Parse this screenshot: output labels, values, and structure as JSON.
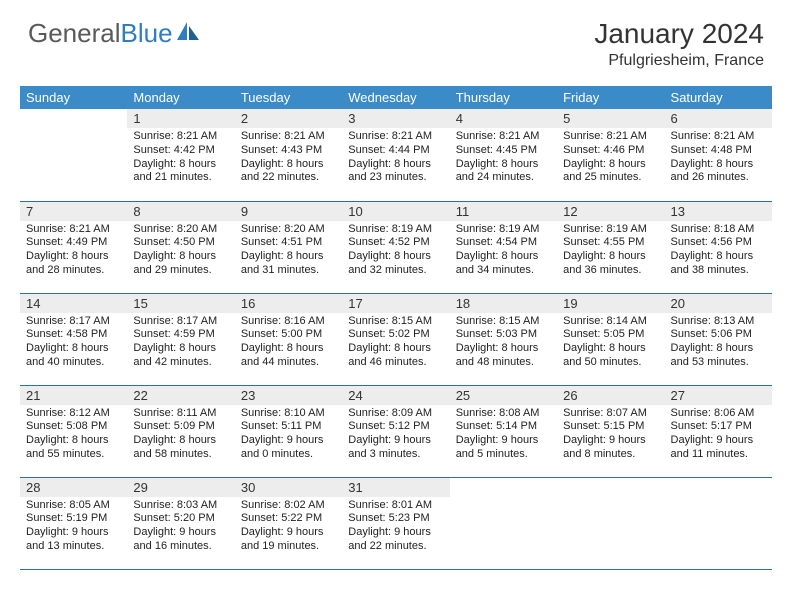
{
  "brand": {
    "part1": "General",
    "part2": "Blue"
  },
  "title": "January 2024",
  "location": "Pfulgriesheim, France",
  "colors": {
    "header_bg": "#3b8bc9",
    "header_text": "#ffffff",
    "daynum_bg": "#ededed",
    "border": "#2f6fa3",
    "text": "#222222",
    "brand_gray": "#5a5a5a",
    "brand_blue": "#2f7ec2"
  },
  "weekdays": [
    "Sunday",
    "Monday",
    "Tuesday",
    "Wednesday",
    "Thursday",
    "Friday",
    "Saturday"
  ],
  "first_weekday_index": 1,
  "days": [
    {
      "n": 1,
      "sr": "8:21 AM",
      "ss": "4:42 PM",
      "dl": "8 hours and 21 minutes."
    },
    {
      "n": 2,
      "sr": "8:21 AM",
      "ss": "4:43 PM",
      "dl": "8 hours and 22 minutes."
    },
    {
      "n": 3,
      "sr": "8:21 AM",
      "ss": "4:44 PM",
      "dl": "8 hours and 23 minutes."
    },
    {
      "n": 4,
      "sr": "8:21 AM",
      "ss": "4:45 PM",
      "dl": "8 hours and 24 minutes."
    },
    {
      "n": 5,
      "sr": "8:21 AM",
      "ss": "4:46 PM",
      "dl": "8 hours and 25 minutes."
    },
    {
      "n": 6,
      "sr": "8:21 AM",
      "ss": "4:48 PM",
      "dl": "8 hours and 26 minutes."
    },
    {
      "n": 7,
      "sr": "8:21 AM",
      "ss": "4:49 PM",
      "dl": "8 hours and 28 minutes."
    },
    {
      "n": 8,
      "sr": "8:20 AM",
      "ss": "4:50 PM",
      "dl": "8 hours and 29 minutes."
    },
    {
      "n": 9,
      "sr": "8:20 AM",
      "ss": "4:51 PM",
      "dl": "8 hours and 31 minutes."
    },
    {
      "n": 10,
      "sr": "8:19 AM",
      "ss": "4:52 PM",
      "dl": "8 hours and 32 minutes."
    },
    {
      "n": 11,
      "sr": "8:19 AM",
      "ss": "4:54 PM",
      "dl": "8 hours and 34 minutes."
    },
    {
      "n": 12,
      "sr": "8:19 AM",
      "ss": "4:55 PM",
      "dl": "8 hours and 36 minutes."
    },
    {
      "n": 13,
      "sr": "8:18 AM",
      "ss": "4:56 PM",
      "dl": "8 hours and 38 minutes."
    },
    {
      "n": 14,
      "sr": "8:17 AM",
      "ss": "4:58 PM",
      "dl": "8 hours and 40 minutes."
    },
    {
      "n": 15,
      "sr": "8:17 AM",
      "ss": "4:59 PM",
      "dl": "8 hours and 42 minutes."
    },
    {
      "n": 16,
      "sr": "8:16 AM",
      "ss": "5:00 PM",
      "dl": "8 hours and 44 minutes."
    },
    {
      "n": 17,
      "sr": "8:15 AM",
      "ss": "5:02 PM",
      "dl": "8 hours and 46 minutes."
    },
    {
      "n": 18,
      "sr": "8:15 AM",
      "ss": "5:03 PM",
      "dl": "8 hours and 48 minutes."
    },
    {
      "n": 19,
      "sr": "8:14 AM",
      "ss": "5:05 PM",
      "dl": "8 hours and 50 minutes."
    },
    {
      "n": 20,
      "sr": "8:13 AM",
      "ss": "5:06 PM",
      "dl": "8 hours and 53 minutes."
    },
    {
      "n": 21,
      "sr": "8:12 AM",
      "ss": "5:08 PM",
      "dl": "8 hours and 55 minutes."
    },
    {
      "n": 22,
      "sr": "8:11 AM",
      "ss": "5:09 PM",
      "dl": "8 hours and 58 minutes."
    },
    {
      "n": 23,
      "sr": "8:10 AM",
      "ss": "5:11 PM",
      "dl": "9 hours and 0 minutes."
    },
    {
      "n": 24,
      "sr": "8:09 AM",
      "ss": "5:12 PM",
      "dl": "9 hours and 3 minutes."
    },
    {
      "n": 25,
      "sr": "8:08 AM",
      "ss": "5:14 PM",
      "dl": "9 hours and 5 minutes."
    },
    {
      "n": 26,
      "sr": "8:07 AM",
      "ss": "5:15 PM",
      "dl": "9 hours and 8 minutes."
    },
    {
      "n": 27,
      "sr": "8:06 AM",
      "ss": "5:17 PM",
      "dl": "9 hours and 11 minutes."
    },
    {
      "n": 28,
      "sr": "8:05 AM",
      "ss": "5:19 PM",
      "dl": "9 hours and 13 minutes."
    },
    {
      "n": 29,
      "sr": "8:03 AM",
      "ss": "5:20 PM",
      "dl": "9 hours and 16 minutes."
    },
    {
      "n": 30,
      "sr": "8:02 AM",
      "ss": "5:22 PM",
      "dl": "9 hours and 19 minutes."
    },
    {
      "n": 31,
      "sr": "8:01 AM",
      "ss": "5:23 PM",
      "dl": "9 hours and 22 minutes."
    }
  ],
  "labels": {
    "sunrise": "Sunrise:",
    "sunset": "Sunset:",
    "daylight": "Daylight:"
  }
}
